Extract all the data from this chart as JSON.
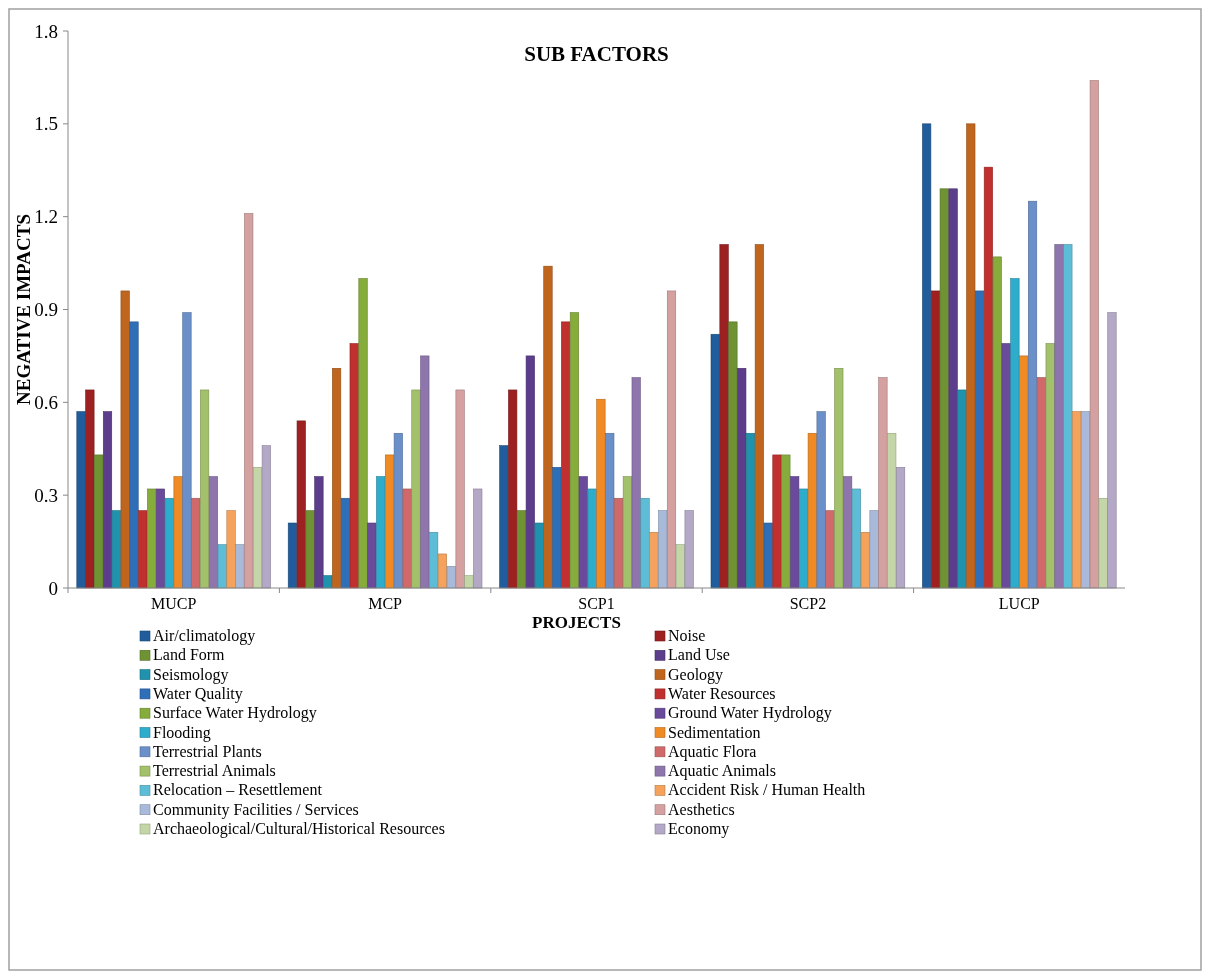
{
  "chart_data": {
    "type": "bar",
    "title": "SUB FACTORS",
    "xlabel": "PROJECTS",
    "ylabel": "NEGATIVE IMPACTS",
    "categories": [
      "MUCP",
      "MCP",
      "SCP1",
      "SCP2",
      "LUCP"
    ],
    "ylim": [
      0,
      1.8
    ],
    "yticks": [
      0,
      0.3,
      0.6,
      0.9,
      1.2,
      1.5,
      1.8
    ],
    "grid": false,
    "legend": "bottom",
    "series": [
      {
        "name": "Air/climatology",
        "color": "#215d9c",
        "values": [
          0.57,
          0.21,
          0.46,
          0.82,
          1.5
        ]
      },
      {
        "name": "Noise",
        "color": "#9d2121",
        "values": [
          0.64,
          0.54,
          0.64,
          1.11,
          0.96
        ]
      },
      {
        "name": "Land Form",
        "color": "#6f9232",
        "values": [
          0.43,
          0.25,
          0.25,
          0.86,
          1.29
        ]
      },
      {
        "name": "Land Use",
        "color": "#5c3d8c",
        "values": [
          0.57,
          0.36,
          0.75,
          0.71,
          1.29
        ]
      },
      {
        "name": "Seismology",
        "color": "#1f93ad",
        "values": [
          0.25,
          0.04,
          0.21,
          0.5,
          0.64
        ]
      },
      {
        "name": "Geology",
        "color": "#c0651d",
        "values": [
          0.96,
          0.71,
          1.04,
          1.11,
          1.5
        ]
      },
      {
        "name": "Water Quality",
        "color": "#2f6fb8",
        "values": [
          0.86,
          0.29,
          0.39,
          0.21,
          0.96
        ]
      },
      {
        "name": "Water Resources",
        "color": "#c0302e",
        "values": [
          0.25,
          0.79,
          0.86,
          0.43,
          1.36
        ]
      },
      {
        "name": "Surface Water Hydrology",
        "color": "#86ac3c",
        "values": [
          0.32,
          1.0,
          0.89,
          0.43,
          1.07
        ]
      },
      {
        "name": "Ground Water Hydrology",
        "color": "#6a4a9a",
        "values": [
          0.32,
          0.21,
          0.36,
          0.36,
          0.79
        ]
      },
      {
        "name": "Flooding",
        "color": "#2eaccc",
        "values": [
          0.29,
          0.36,
          0.32,
          0.32,
          1.0
        ]
      },
      {
        "name": "Sedimentation",
        "color": "#f08a24",
        "values": [
          0.36,
          0.43,
          0.61,
          0.5,
          0.75
        ]
      },
      {
        "name": "Terrestrial Plants",
        "color": "#6a8fc9",
        "values": [
          0.89,
          0.5,
          0.5,
          0.57,
          1.25
        ]
      },
      {
        "name": "Aquatic Flora",
        "color": "#d06a6a",
        "values": [
          0.29,
          0.32,
          0.29,
          0.25,
          0.68
        ]
      },
      {
        "name": "Terrestrial Animals",
        "color": "#a3c06b",
        "values": [
          0.64,
          0.64,
          0.36,
          0.71,
          0.79
        ]
      },
      {
        "name": "Aquatic Animals",
        "color": "#8e76ad",
        "values": [
          0.36,
          0.75,
          0.68,
          0.36,
          1.11
        ]
      },
      {
        "name": "Relocation – Resettlement",
        "color": "#5ebdd6",
        "values": [
          0.14,
          0.18,
          0.29,
          0.32,
          1.11
        ]
      },
      {
        "name": "Accident Risk / Human Health",
        "color": "#f5a35c",
        "values": [
          0.25,
          0.11,
          0.18,
          0.18,
          0.57
        ]
      },
      {
        "name": "Community Facilities / Services",
        "color": "#a8b9da",
        "values": [
          0.14,
          0.07,
          0.25,
          0.25,
          0.57
        ]
      },
      {
        "name": "Aesthetics",
        "color": "#d4a0a0",
        "values": [
          1.21,
          0.64,
          0.96,
          0.68,
          1.64
        ]
      },
      {
        "name": "Archaeological/Cultural/Historical Resources",
        "color": "#c4d6a8",
        "values": [
          0.39,
          0.04,
          0.14,
          0.5,
          0.29
        ]
      },
      {
        "name": "Economy",
        "color": "#b3a9c6",
        "values": [
          0.46,
          0.32,
          0.25,
          0.39,
          0.89
        ]
      }
    ]
  }
}
